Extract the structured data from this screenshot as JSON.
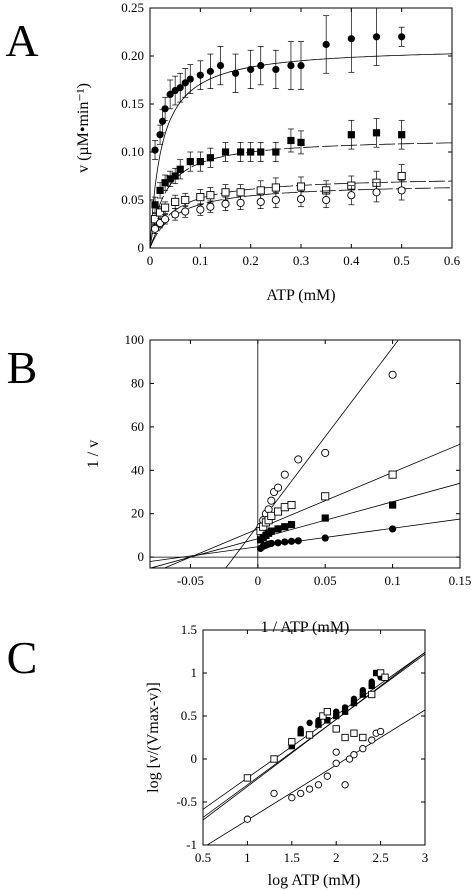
{
  "colors": {
    "ink": "#000000",
    "background": "#ffffff"
  },
  "chart_data": [
    {
      "panel_label": "A",
      "type": "scatter",
      "xlabel": "ATP  (mM)",
      "ylabel": "v   (µM•min⁻¹)",
      "xlim": [
        0,
        0.6
      ],
      "ylim": [
        0,
        0.25
      ],
      "x_ticks": [
        0,
        0.1,
        0.2,
        0.3,
        0.4,
        0.5,
        0.6
      ],
      "y_ticks": [
        0,
        0.05,
        0.1,
        0.15,
        0.2,
        0.25
      ],
      "x_tick_labels": [
        "0",
        "0.1",
        "0.2",
        "0.3",
        "0.4",
        "0.5",
        "0.6"
      ],
      "y_tick_labels": [
        "0",
        "0.05",
        "0.10",
        "0.15",
        "0.20",
        "0.25"
      ],
      "series": [
        {
          "marker": "filled-circle",
          "points": [
            [
              0.01,
              0.102
            ],
            [
              0.02,
              0.118
            ],
            [
              0.025,
              0.132
            ],
            [
              0.03,
              0.145
            ],
            [
              0.04,
              0.16
            ],
            [
              0.05,
              0.164
            ],
            [
              0.06,
              0.167
            ],
            [
              0.07,
              0.172
            ],
            [
              0.08,
              0.176
            ],
            [
              0.1,
              0.18
            ],
            [
              0.12,
              0.184
            ],
            [
              0.14,
              0.19
            ],
            [
              0.17,
              0.182
            ],
            [
              0.2,
              0.186
            ],
            [
              0.22,
              0.19
            ],
            [
              0.25,
              0.186
            ],
            [
              0.28,
              0.19
            ],
            [
              0.3,
              0.19
            ],
            [
              0.35,
              0.212
            ],
            [
              0.4,
              0.218
            ],
            [
              0.45,
              0.22
            ],
            [
              0.5,
              0.22
            ]
          ],
          "err": [
            0.01,
            0.01,
            0.012,
            0.012,
            0.015,
            0.015,
            0.015,
            0.015,
            0.015,
            0.015,
            0.018,
            0.02,
            0.02,
            0.02,
            0.02,
            0.02,
            0.025,
            0.025,
            0.03,
            0.035,
            0.03,
            0.01
          ],
          "fit": {
            "vmax": 0.21,
            "km": 0.023
          }
        },
        {
          "marker": "filled-square",
          "points": [
            [
              0.01,
              0.045
            ],
            [
              0.02,
              0.06
            ],
            [
              0.03,
              0.068
            ],
            [
              0.04,
              0.072
            ],
            [
              0.05,
              0.075
            ],
            [
              0.06,
              0.082
            ],
            [
              0.08,
              0.09
            ],
            [
              0.1,
              0.09
            ],
            [
              0.12,
              0.094
            ],
            [
              0.15,
              0.1
            ],
            [
              0.18,
              0.1
            ],
            [
              0.2,
              0.1
            ],
            [
              0.22,
              0.1
            ],
            [
              0.25,
              0.1
            ],
            [
              0.28,
              0.112
            ],
            [
              0.3,
              0.11
            ],
            [
              0.4,
              0.118
            ],
            [
              0.45,
              0.12
            ],
            [
              0.5,
              0.118
            ]
          ],
          "err": [
            0.008,
            0.008,
            0.008,
            0.008,
            0.008,
            0.01,
            0.01,
            0.01,
            0.01,
            0.01,
            0.01,
            0.01,
            0.01,
            0.01,
            0.012,
            0.012,
            0.015,
            0.015,
            0.015
          ],
          "fit": {
            "vmax": 0.115,
            "km": 0.03
          }
        },
        {
          "marker": "open-square",
          "points": [
            [
              0.01,
              0.03
            ],
            [
              0.02,
              0.037
            ],
            [
              0.03,
              0.042
            ],
            [
              0.05,
              0.048
            ],
            [
              0.07,
              0.05
            ],
            [
              0.1,
              0.053
            ],
            [
              0.12,
              0.055
            ],
            [
              0.15,
              0.058
            ],
            [
              0.18,
              0.058
            ],
            [
              0.22,
              0.06
            ],
            [
              0.25,
              0.063
            ],
            [
              0.3,
              0.064
            ],
            [
              0.35,
              0.06
            ],
            [
              0.4,
              0.065
            ],
            [
              0.45,
              0.068
            ],
            [
              0.5,
              0.075
            ]
          ],
          "err": [
            0.006,
            0.006,
            0.006,
            0.007,
            0.007,
            0.008,
            0.008,
            0.008,
            0.008,
            0.01,
            0.01,
            0.01,
            0.01,
            0.01,
            0.012,
            0.012
          ],
          "fit": {
            "vmax": 0.075,
            "km": 0.045
          }
        },
        {
          "marker": "open-circle",
          "points": [
            [
              0.01,
              0.02
            ],
            [
              0.02,
              0.026
            ],
            [
              0.03,
              0.03
            ],
            [
              0.05,
              0.035
            ],
            [
              0.07,
              0.038
            ],
            [
              0.1,
              0.04
            ],
            [
              0.12,
              0.043
            ],
            [
              0.15,
              0.046
            ],
            [
              0.18,
              0.047
            ],
            [
              0.22,
              0.048
            ],
            [
              0.25,
              0.05
            ],
            [
              0.3,
              0.051
            ],
            [
              0.35,
              0.05
            ],
            [
              0.4,
              0.055
            ],
            [
              0.45,
              0.058
            ],
            [
              0.5,
              0.06
            ]
          ],
          "err": [
            0.005,
            0.005,
            0.005,
            0.006,
            0.006,
            0.006,
            0.006,
            0.007,
            0.007,
            0.007,
            0.008,
            0.008,
            0.008,
            0.01,
            0.01,
            0.01
          ],
          "fit": {
            "vmax": 0.068,
            "km": 0.05
          }
        }
      ]
    },
    {
      "panel_label": "B",
      "type": "scatter",
      "xlabel": "1 / ATP  (mM)",
      "ylabel": "1 / v",
      "xlim": [
        -0.08,
        0.15
      ],
      "ylim": [
        -5,
        100
      ],
      "x_ticks": [
        -0.05,
        0,
        0.05,
        0.1,
        0.15
      ],
      "y_ticks": [
        0,
        20,
        40,
        60,
        80,
        100
      ],
      "x_tick_labels": [
        "-0.05",
        "0",
        "0.05",
        "0.1",
        "0.15"
      ],
      "y_tick_labels": [
        "0",
        "20",
        "40",
        "60",
        "80",
        "100"
      ],
      "series": [
        {
          "marker": "open-circle",
          "points": [
            [
              0.002,
              14
            ],
            [
              0.004,
              17
            ],
            [
              0.006,
              20
            ],
            [
              0.008,
              22
            ],
            [
              0.01,
              26
            ],
            [
              0.012,
              30
            ],
            [
              0.015,
              32
            ],
            [
              0.02,
              38
            ],
            [
              0.03,
              45
            ],
            [
              0.05,
              48
            ],
            [
              0.1,
              84
            ]
          ],
          "line": {
            "slope": 820,
            "intercept": 14.5
          }
        },
        {
          "marker": "open-square",
          "points": [
            [
              0.002,
              12
            ],
            [
              0.004,
              14
            ],
            [
              0.006,
              16
            ],
            [
              0.008,
              17
            ],
            [
              0.01,
              19
            ],
            [
              0.015,
              21
            ],
            [
              0.02,
              23
            ],
            [
              0.025,
              24
            ],
            [
              0.05,
              28
            ],
            [
              0.1,
              38
            ]
          ],
          "line": {
            "slope": 260,
            "intercept": 13
          }
        },
        {
          "marker": "filled-square",
          "points": [
            [
              0.002,
              8
            ],
            [
              0.004,
              9
            ],
            [
              0.006,
              10
            ],
            [
              0.008,
              11
            ],
            [
              0.01,
              12
            ],
            [
              0.015,
              13
            ],
            [
              0.02,
              14
            ],
            [
              0.025,
              15
            ],
            [
              0.05,
              18
            ],
            [
              0.1,
              24
            ]
          ],
          "line": {
            "slope": 170,
            "intercept": 8.5
          }
        },
        {
          "marker": "filled-circle",
          "points": [
            [
              0.002,
              4
            ],
            [
              0.004,
              5
            ],
            [
              0.006,
              5.5
            ],
            [
              0.008,
              6
            ],
            [
              0.01,
              6.3
            ],
            [
              0.015,
              6.6
            ],
            [
              0.02,
              7
            ],
            [
              0.025,
              7.3
            ],
            [
              0.03,
              7.5
            ],
            [
              0.05,
              8.8
            ],
            [
              0.1,
              13
            ]
          ],
          "line": {
            "slope": 85,
            "intercept": 4.8
          }
        }
      ]
    },
    {
      "panel_label": "C",
      "type": "scatter",
      "xlabel": "log ATP (mM)",
      "ylabel": "log  [v/(Vmax-v)]",
      "xlim": [
        0.5,
        3
      ],
      "ylim": [
        -1,
        1.5
      ],
      "x_ticks": [
        0.5,
        1,
        1.5,
        2,
        2.5,
        3
      ],
      "y_ticks": [
        -1,
        -0.5,
        0,
        0.5,
        1,
        1.5
      ],
      "x_tick_labels": [
        "0.5",
        "1",
        "1.5",
        "2",
        "2.5",
        "3"
      ],
      "y_tick_labels": [
        "-1",
        "-0.5",
        "0",
        "0.5",
        "1",
        "1.5"
      ],
      "series": [
        {
          "marker": "filled-circle",
          "points": [
            [
              1.5,
              0.2
            ],
            [
              1.6,
              0.35
            ],
            [
              1.7,
              0.42
            ],
            [
              1.8,
              0.45
            ],
            [
              1.9,
              0.55
            ],
            [
              2.0,
              0.55
            ],
            [
              2.1,
              0.6
            ],
            [
              2.2,
              0.7
            ],
            [
              2.3,
              0.8
            ],
            [
              2.4,
              0.9
            ],
            [
              2.5,
              0.95
            ]
          ],
          "line": {
            "slope": 0.78,
            "intercept": -1.1
          }
        },
        {
          "marker": "filled-square",
          "points": [
            [
              1.5,
              0.15
            ],
            [
              1.6,
              0.3
            ],
            [
              1.8,
              0.4
            ],
            [
              1.9,
              0.45
            ],
            [
              2.0,
              0.5
            ],
            [
              2.1,
              0.55
            ],
            [
              2.2,
              0.65
            ],
            [
              2.3,
              0.75
            ],
            [
              2.4,
              0.85
            ],
            [
              2.45,
              1.0
            ]
          ],
          "line": {
            "slope": 0.76,
            "intercept": -1.06
          }
        },
        {
          "marker": "open-square",
          "points": [
            [
              1.0,
              -0.22
            ],
            [
              1.3,
              0.0
            ],
            [
              1.5,
              0.2
            ],
            [
              1.7,
              0.28
            ],
            [
              1.85,
              0.5
            ],
            [
              1.9,
              0.55
            ],
            [
              2.0,
              0.35
            ],
            [
              2.1,
              0.25
            ],
            [
              2.2,
              0.3
            ],
            [
              2.3,
              0.25
            ],
            [
              2.4,
              0.75
            ],
            [
              2.5,
              1.0
            ],
            [
              2.55,
              0.95
            ]
          ],
          "line": {
            "slope": 0.73,
            "intercept": -0.95
          }
        },
        {
          "marker": "open-circle",
          "points": [
            [
              1.0,
              -0.7
            ],
            [
              1.3,
              -0.4
            ],
            [
              1.5,
              -0.45
            ],
            [
              1.6,
              -0.4
            ],
            [
              1.7,
              -0.35
            ],
            [
              1.8,
              -0.3
            ],
            [
              1.9,
              -0.2
            ],
            [
              2.0,
              -0.05
            ],
            [
              2.0,
              0.08
            ],
            [
              2.1,
              -0.3
            ],
            [
              2.15,
              0.0
            ],
            [
              2.2,
              0.05
            ],
            [
              2.3,
              0.12
            ],
            [
              2.4,
              0.22
            ],
            [
              2.45,
              0.3
            ],
            [
              2.5,
              0.32
            ]
          ],
          "line": {
            "slope": 0.64,
            "intercept": -1.35
          }
        }
      ]
    }
  ]
}
